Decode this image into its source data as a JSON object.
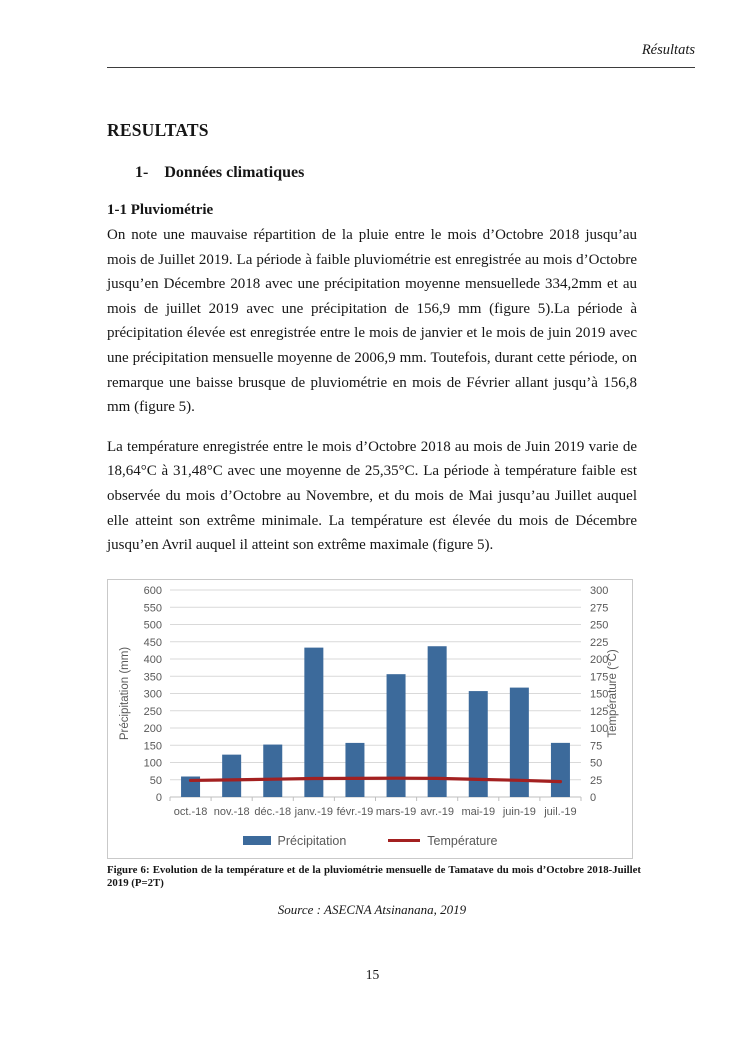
{
  "page": {
    "header": "Résultats",
    "page_number": "15"
  },
  "content": {
    "title": "RESULTATS",
    "section": {
      "number": "1-",
      "label": "Données climatiques"
    },
    "subsection": "1-1 Pluviométrie",
    "paragraphs": [
      "On note une mauvaise répartition de la pluie entre le mois d’Octobre 2018 jusqu’au mois de Juillet 2019. La période à faible pluviométrie est enregistrée au mois d’Octobre jusqu’en Décembre 2018 avec une précipitation moyenne mensuellede 334,2mm et au mois de juillet 2019 avec une précipitation de 156,9 mm (figure 5).La période à précipitation élevée est enregistrée entre le mois de janvier et le mois de juin 2019 avec une précipitation mensuelle moyenne de 2006,9 mm. Toutefois, durant cette période, on remarque une baisse brusque de pluviométrie en mois de Février allant jusqu’à 156,8 mm (figure 5).",
      "La température enregistrée entre le mois d’Octobre 2018 au mois de Juin 2019 varie de 18,64°C à 31,48°C avec une moyenne de 25,35°C. La période à température faible est observée du mois d’Octobre au Novembre, et du mois de Mai jusqu’au Juillet auquel elle atteint son extrême minimale. La température est élevée du mois de Décembre jusqu’en Avril auquel il atteint son extrême maximale (figure 5)."
    ],
    "figure": {
      "caption": "Figure 6: Evolution de la température et de la pluviométrie mensuelle de Tamatave du mois d’Octobre 2018-Juillet 2019 (P=2T)",
      "source": "Source : ASECNA Atsinanana, 2019"
    }
  },
  "chart_data": {
    "type": "bar",
    "combo": "bar+line, dual axis",
    "categories": [
      "oct.-18",
      "nov.-18",
      "déc.-18",
      "janv.-19",
      "févr.-19",
      "mars-19",
      "avr.-19",
      "mai-19",
      "juin-19",
      "juil.-19"
    ],
    "series": [
      {
        "name": "Précipitation",
        "type": "bar",
        "axis": "left",
        "color": "#3c6a9b",
        "values": [
          59.4,
          122.8,
          152.0,
          433.0,
          156.8,
          356.0,
          437.0,
          307.0,
          317.1,
          156.9
        ]
      },
      {
        "name": "Température",
        "type": "line",
        "axis": "right",
        "color": "#a32020",
        "values": [
          24.0,
          24.8,
          25.8,
          26.8,
          27.0,
          27.3,
          27.0,
          25.5,
          24.2,
          22.3
        ]
      }
    ],
    "left_axis": {
      "title": "Précipitation (mm)",
      "min": 0,
      "max": 600,
      "ticks": [
        0,
        50,
        100,
        150,
        200,
        250,
        300,
        350,
        400,
        450,
        500,
        550,
        600
      ]
    },
    "right_axis": {
      "title": "Température (°C)",
      "min": 0,
      "max": 300,
      "ticks": [
        0,
        25,
        50,
        75,
        100,
        125,
        150,
        175,
        200,
        225,
        250,
        275,
        300
      ]
    },
    "grid": true,
    "legend_position": "bottom",
    "colors": {
      "gridline": "#d9d9d9",
      "axis_line": "#bfbfbf",
      "tick_label": "#595959",
      "chart_border": "#c9c9c9"
    }
  }
}
